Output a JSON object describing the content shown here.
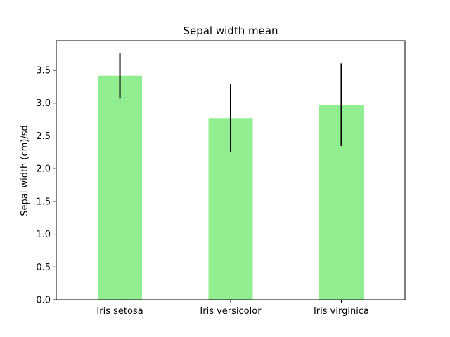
{
  "chart_data": {
    "type": "bar",
    "title": "Sepal width mean",
    "xlabel": "",
    "ylabel": "Sepal width (cm)/sd",
    "categories": [
      "Iris setosa",
      "Iris versicolor",
      "Iris virginica"
    ],
    "values": [
      3.418,
      2.77,
      2.974
    ],
    "error": [
      0.35,
      0.52,
      0.63
    ],
    "ylim": [
      0,
      3.95
    ],
    "yticks": [
      "0.0",
      "0.5",
      "1.0",
      "1.5",
      "2.0",
      "2.5",
      "3.0",
      "3.5"
    ],
    "bar_color": "#90ee90",
    "error_color": "#000000",
    "grid": false,
    "legend": false
  }
}
